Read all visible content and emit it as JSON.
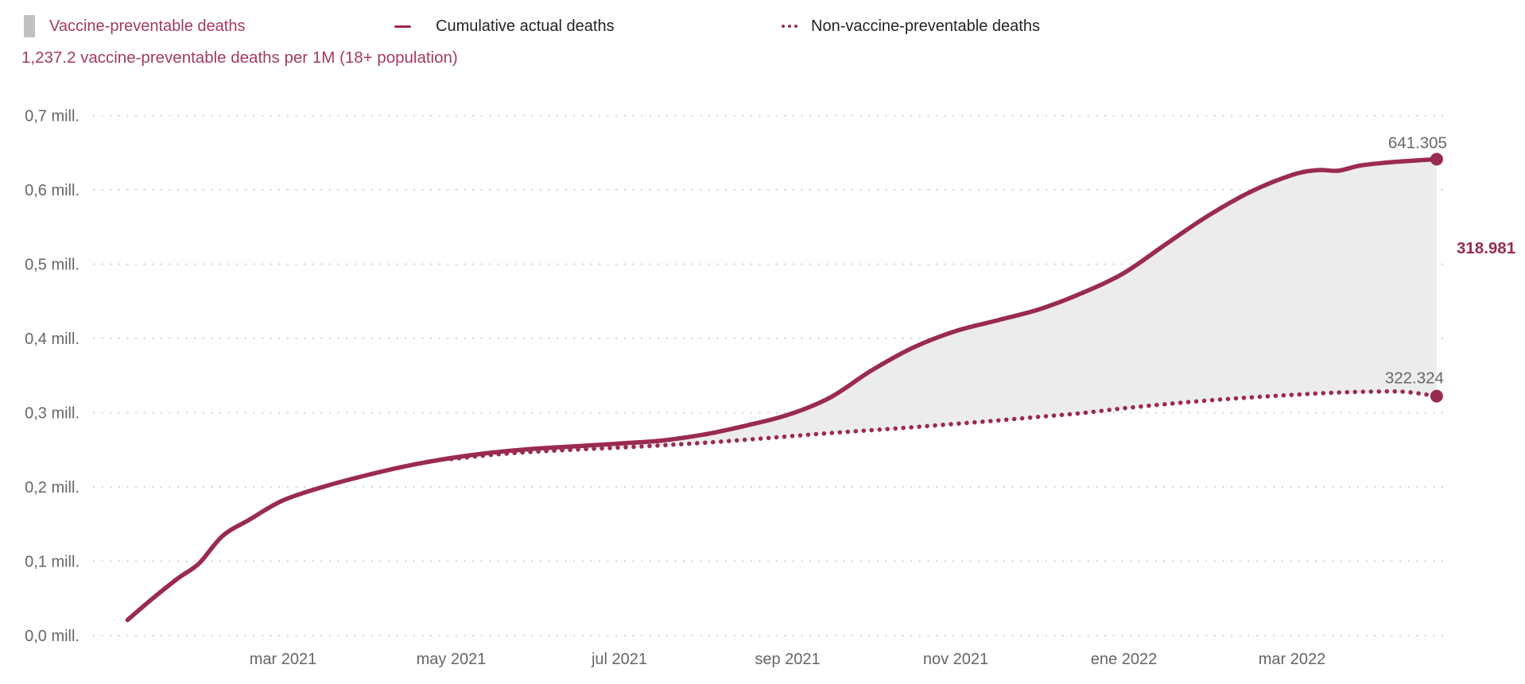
{
  "legend": {
    "items": [
      {
        "label": "Vaccine-preventable deaths",
        "marker": "area-swatch",
        "label_color": "#a23a64"
      },
      {
        "label": "Cumulative actual deaths",
        "marker": "solid-line",
        "label_color": "#252423"
      },
      {
        "label": "Non-vaccine-preventable deaths",
        "marker": "dotted-line",
        "label_color": "#252423"
      }
    ]
  },
  "subtitle": "1,237.2 vaccine-preventable deaths per 1M (18+ population)",
  "chart_data": {
    "type": "area",
    "title": "",
    "subtitle": "1,237.2 vaccine-preventable deaths per 1M (18+ population)",
    "x_unit": "months since January 2021",
    "y_unit": "deaths (millions)",
    "ylim": [
      0.0,
      0.7
    ],
    "grid": "dotted-horizontal",
    "legend_position": "top",
    "x_ticks": [
      {
        "label": "mar 2021",
        "t": 2
      },
      {
        "label": "may 2021",
        "t": 4
      },
      {
        "label": "jul 2021",
        "t": 6
      },
      {
        "label": "sep 2021",
        "t": 8
      },
      {
        "label": "nov 2021",
        "t": 10
      },
      {
        "label": "ene 2022",
        "t": 12
      },
      {
        "label": "mar 2022",
        "t": 14
      }
    ],
    "y_ticks": [
      {
        "label": "0,0 mill.",
        "v": 0.0
      },
      {
        "label": "0,1 mill.",
        "v": 0.1
      },
      {
        "label": "0,2 mill.",
        "v": 0.2
      },
      {
        "label": "0,3 mill.",
        "v": 0.3
      },
      {
        "label": "0,4 mill.",
        "v": 0.4
      },
      {
        "label": "0,5 mill.",
        "v": 0.5
      },
      {
        "label": "0,6 mill.",
        "v": 0.6
      },
      {
        "label": "0,7 mill.",
        "v": 0.7
      }
    ],
    "series": [
      {
        "name": "Cumulative actual deaths",
        "style": "solid",
        "end_label": "641.305",
        "end_value": 641305,
        "points": [
          [
            0.15,
            0.021
          ],
          [
            0.45,
            0.05
          ],
          [
            0.75,
            0.077
          ],
          [
            1.0,
            0.097
          ],
          [
            1.28,
            0.134
          ],
          [
            1.6,
            0.156
          ],
          [
            2.0,
            0.182
          ],
          [
            2.5,
            0.201
          ],
          [
            3.0,
            0.216
          ],
          [
            3.5,
            0.229
          ],
          [
            4.0,
            0.239
          ],
          [
            4.5,
            0.2465
          ],
          [
            5.0,
            0.2515
          ],
          [
            5.5,
            0.255
          ],
          [
            6.0,
            0.2585
          ],
          [
            6.5,
            0.2625
          ],
          [
            7.0,
            0.2705
          ],
          [
            7.5,
            0.2825
          ],
          [
            8.0,
            0.297
          ],
          [
            8.5,
            0.32
          ],
          [
            9.0,
            0.357
          ],
          [
            9.5,
            0.388
          ],
          [
            10.0,
            0.41
          ],
          [
            10.5,
            0.4245
          ],
          [
            11.0,
            0.4395
          ],
          [
            11.5,
            0.461
          ],
          [
            12.0,
            0.488
          ],
          [
            12.5,
            0.527
          ],
          [
            13.0,
            0.565
          ],
          [
            13.5,
            0.597
          ],
          [
            14.0,
            0.62
          ],
          [
            14.3,
            0.6265
          ],
          [
            14.55,
            0.6258
          ],
          [
            14.8,
            0.6325
          ],
          [
            15.1,
            0.6365
          ],
          [
            15.4,
            0.639
          ],
          [
            15.72,
            0.6413
          ]
        ]
      },
      {
        "name": "Non-vaccine-preventable deaths",
        "style": "dotted",
        "end_label": "322.324",
        "end_value": 322324,
        "points": [
          [
            4.0,
            0.2375
          ],
          [
            4.5,
            0.2435
          ],
          [
            5.0,
            0.2475
          ],
          [
            5.5,
            0.2505
          ],
          [
            6.0,
            0.253
          ],
          [
            6.5,
            0.256
          ],
          [
            7.0,
            0.2595
          ],
          [
            7.5,
            0.2635
          ],
          [
            8.0,
            0.268
          ],
          [
            8.5,
            0.2725
          ],
          [
            9.0,
            0.2765
          ],
          [
            9.5,
            0.2805
          ],
          [
            10.0,
            0.285
          ],
          [
            10.5,
            0.2895
          ],
          [
            11.0,
            0.2945
          ],
          [
            11.5,
            0.2995
          ],
          [
            12.0,
            0.306
          ],
          [
            12.5,
            0.3115
          ],
          [
            13.0,
            0.3165
          ],
          [
            13.5,
            0.3205
          ],
          [
            14.0,
            0.324
          ],
          [
            14.5,
            0.327
          ],
          [
            15.0,
            0.3285
          ],
          [
            15.35,
            0.328
          ],
          [
            15.72,
            0.3223
          ]
        ]
      }
    ],
    "area_between": {
      "name": "Vaccine-preventable deaths",
      "from_month": 4.0,
      "difference_label": "318.981",
      "difference_value": 318981
    },
    "colors": {
      "line": "#9a2b50",
      "area_fill": "#ececec",
      "legend_swatch": "#c1c1c1",
      "accent_text": "#a23a64",
      "diff_label": "#9a2b50",
      "axis_text": "#666666",
      "value_label": "#666666",
      "grid": "#c9c9c9",
      "legend_text": "#252423",
      "background": "#ffffff"
    }
  }
}
